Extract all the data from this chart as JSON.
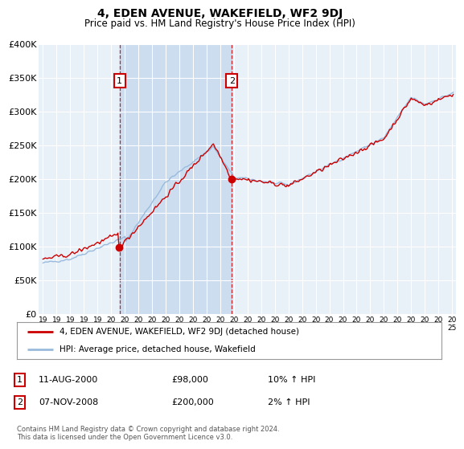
{
  "title": "4, EDEN AVENUE, WAKEFIELD, WF2 9DJ",
  "subtitle": "Price paid vs. HM Land Registry's House Price Index (HPI)",
  "ylabel_ticks": [
    "£0",
    "£50K",
    "£100K",
    "£150K",
    "£200K",
    "£250K",
    "£300K",
    "£350K",
    "£400K"
  ],
  "ytick_values": [
    0,
    50000,
    100000,
    150000,
    200000,
    250000,
    300000,
    350000,
    400000
  ],
  "ylim": [
    0,
    400000
  ],
  "xlim_start": 1994.7,
  "xlim_end": 2025.3,
  "xticks": [
    1995,
    1996,
    1997,
    1998,
    1999,
    2000,
    2001,
    2002,
    2003,
    2004,
    2005,
    2006,
    2007,
    2008,
    2009,
    2010,
    2011,
    2012,
    2013,
    2014,
    2015,
    2016,
    2017,
    2018,
    2019,
    2020,
    2021,
    2022,
    2023,
    2024,
    2025
  ],
  "background_color": "#ffffff",
  "plot_bg_color": "#e8f0f8",
  "shade_color": "#ccddf0",
  "grid_color": "#ffffff",
  "title_color": "#000000",
  "hpi_line_color": "#99bbdd",
  "price_line_color": "#cc0000",
  "transaction1": {
    "date": 2000.62,
    "price": 98000,
    "label": "1"
  },
  "transaction2": {
    "date": 2008.85,
    "price": 200000,
    "label": "2"
  },
  "legend_line1": "4, EDEN AVENUE, WAKEFIELD, WF2 9DJ (detached house)",
  "legend_line2": "HPI: Average price, detached house, Wakefield",
  "footer1": "Contains HM Land Registry data © Crown copyright and database right 2024.",
  "footer2": "This data is licensed under the Open Government Licence v3.0.",
  "table_row1": [
    "1",
    "11-AUG-2000",
    "£98,000",
    "10% ↑ HPI"
  ],
  "table_row2": [
    "2",
    "07-NOV-2008",
    "£200,000",
    "2% ↑ HPI"
  ]
}
